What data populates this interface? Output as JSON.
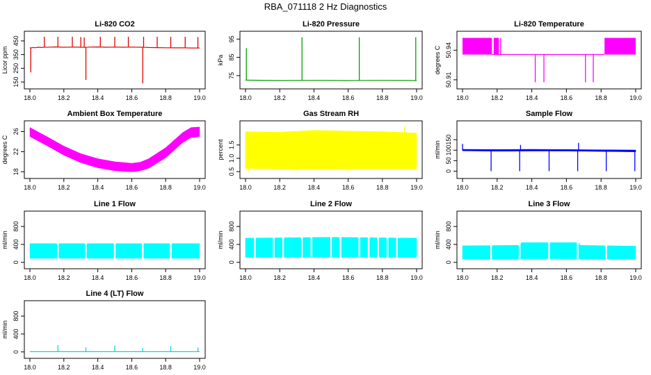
{
  "figure": {
    "title": "RBA_071118  2 Hz Diagnostics"
  },
  "chart_data": [
    {
      "id": "co2",
      "type": "line",
      "title": "Li-820 CO2",
      "ylabel": "Licor ppm",
      "xlim": [
        18.0,
        19.0
      ],
      "ylim": [
        130,
        490
      ],
      "xticks": [
        18.0,
        18.2,
        18.4,
        18.6,
        18.8,
        19.0
      ],
      "xtick_labels": [
        "18.0",
        "18.2",
        "18.4",
        "18.6",
        "18.8",
        "19.0"
      ],
      "yticks": [
        150,
        250,
        350,
        450
      ],
      "ytick_labels": [
        "150",
        "250",
        "350",
        "450"
      ],
      "color": "#e00000",
      "series": [
        {
          "name": "CO2",
          "mode": "line",
          "x": [
            18.0,
            18.01,
            18.02,
            18.03,
            18.05,
            18.07,
            18.09,
            18.1,
            18.12,
            18.15,
            18.2,
            18.25,
            18.3,
            18.33,
            18.35,
            18.4,
            18.45,
            18.5,
            18.55,
            18.6,
            18.65,
            18.68,
            18.7,
            18.75,
            18.8,
            18.85,
            18.9,
            18.95,
            18.99,
            19.0
          ],
          "y": [
            400,
            400,
            402,
            400,
            404,
            402,
            405,
            403,
            405,
            406,
            404,
            405,
            404,
            403,
            405,
            406,
            404,
            405,
            404,
            405,
            404,
            403,
            402,
            401,
            400,
            399,
            400,
            398,
            398,
            398
          ]
        }
      ],
      "spikes": [
        {
          "x": 18.005,
          "y": 220
        },
        {
          "x": 18.085,
          "y": 480
        },
        {
          "x": 18.165,
          "y": 480
        },
        {
          "x": 18.25,
          "y": 480
        },
        {
          "x": 18.3,
          "y": 478
        },
        {
          "x": 18.32,
          "y": 475
        },
        {
          "x": 18.33,
          "y": 165
        },
        {
          "x": 18.415,
          "y": 480
        },
        {
          "x": 18.5,
          "y": 480
        },
        {
          "x": 18.58,
          "y": 480
        },
        {
          "x": 18.665,
          "y": 140
        },
        {
          "x": 18.67,
          "y": 480
        },
        {
          "x": 18.75,
          "y": 480
        },
        {
          "x": 18.83,
          "y": 480
        },
        {
          "x": 18.915,
          "y": 480
        },
        {
          "x": 18.99,
          "y": 478
        }
      ]
    },
    {
      "id": "pressure",
      "type": "line",
      "title": "Li-820 Pressure",
      "ylabel": "kPa",
      "xlim": [
        18.0,
        19.0
      ],
      "ylim": [
        70,
        97
      ],
      "xticks": [
        18.0,
        18.2,
        18.4,
        18.6,
        18.8,
        19.0
      ],
      "xtick_labels": [
        "18.0",
        "18.2",
        "18.4",
        "18.6",
        "18.8",
        "19.0"
      ],
      "yticks": [
        75,
        85,
        95
      ],
      "ytick_labels": [
        "75",
        "85",
        "95"
      ],
      "color": "#00a000",
      "series": [
        {
          "name": "Pressure",
          "mode": "line",
          "x": [
            18.0,
            18.2,
            18.4,
            18.6,
            18.8,
            19.0
          ],
          "y": [
            72.5,
            72.3,
            72.4,
            72.3,
            72.4,
            72.3
          ]
        }
      ],
      "spikes": [
        {
          "x": 18.005,
          "y": 90
        },
        {
          "x": 18.33,
          "y": 96
        },
        {
          "x": 18.665,
          "y": 96
        },
        {
          "x": 18.995,
          "y": 96
        }
      ]
    },
    {
      "id": "temp",
      "type": "line",
      "title": "Li-820 Temperature",
      "ylabel": "degrees C",
      "xlim": [
        18.0,
        19.0
      ],
      "ylim": [
        50.905,
        50.955
      ],
      "xticks": [
        18.0,
        18.2,
        18.4,
        18.6,
        18.8,
        19.0
      ],
      "xtick_labels": [
        "18.0",
        "18.2",
        "18.4",
        "18.6",
        "18.8",
        "19.0"
      ],
      "yticks": [
        50.91,
        50.94
      ],
      "ytick_labels": [
        "50.91",
        "50.94"
      ],
      "color": "#ff00ff",
      "series": [
        {
          "name": "Temperature",
          "mode": "line",
          "x": [
            18.17,
            18.82
          ],
          "y": [
            50.9356,
            50.9356
          ]
        }
      ],
      "bands": [
        {
          "x0": 18.0,
          "x1": 18.17,
          "y0": 50.9356,
          "y1": 50.9525
        },
        {
          "x0": 18.18,
          "x1": 18.21,
          "y0": 50.9356,
          "y1": 50.9525
        },
        {
          "x0": 18.82,
          "x1": 19.0,
          "y0": 50.9356,
          "y1": 50.9525
        }
      ],
      "spikes": [
        {
          "x": 18.42,
          "y": 50.9075
        },
        {
          "x": 18.47,
          "y": 50.9075
        },
        {
          "x": 18.71,
          "y": 50.9075
        },
        {
          "x": 18.755,
          "y": 50.9075
        },
        {
          "x": 18.22,
          "y": 50.9525
        }
      ]
    },
    {
      "id": "box_temp",
      "type": "area",
      "title": "Ambient Box Temperature",
      "ylabel": "degrees C",
      "xlim": [
        18.0,
        19.0
      ],
      "ylim": [
        17.5,
        27.3
      ],
      "xticks": [
        18.0,
        18.2,
        18.4,
        18.6,
        18.8,
        19.0
      ],
      "xtick_labels": [
        "18.0",
        "18.2",
        "18.4",
        "18.6",
        "18.8",
        "19.0"
      ],
      "yticks": [
        18,
        22,
        26
      ],
      "ytick_labels": [
        "18",
        "22",
        "26"
      ],
      "color": "#ff00ff",
      "series": [
        {
          "name": "Box temperature",
          "mode": "band",
          "x": [
            18.0,
            18.1,
            18.2,
            18.3,
            18.4,
            18.5,
            18.6,
            18.65,
            18.7,
            18.8,
            18.9,
            18.95,
            19.0
          ],
          "low": [
            25.0,
            23.2,
            21.3,
            19.8,
            18.8,
            18.2,
            18.0,
            18.2,
            18.7,
            20.8,
            23.8,
            24.8,
            25.0
          ],
          "high": [
            26.8,
            25.0,
            23.1,
            21.6,
            20.6,
            20.0,
            19.7,
            19.9,
            20.6,
            22.8,
            25.8,
            26.8,
            26.9
          ]
        }
      ]
    },
    {
      "id": "rh",
      "type": "area",
      "title": "Gas Stream RH",
      "ylabel": "percent",
      "xlim": [
        18.0,
        19.0
      ],
      "ylim": [
        0.4,
        2.25
      ],
      "xticks": [
        18.0,
        18.2,
        18.4,
        18.6,
        18.8,
        19.0
      ],
      "xtick_labels": [
        "18.0",
        "18.2",
        "18.4",
        "18.6",
        "18.8",
        "19.0"
      ],
      "yticks": [
        0.5,
        1.0,
        1.5
      ],
      "ytick_labels": [
        "0.5",
        "1.0",
        "1.5"
      ],
      "color": "#ffff00",
      "series": [
        {
          "name": "RH",
          "mode": "band",
          "x": [
            18.0,
            18.2,
            18.4,
            18.6,
            18.8,
            19.0
          ],
          "low": [
            0.62,
            0.6,
            0.58,
            0.6,
            0.6,
            0.6
          ],
          "high": [
            2.0,
            1.98,
            2.05,
            2.02,
            2.0,
            1.95
          ]
        }
      ],
      "spikes": [
        {
          "x": 18.02,
          "y": 0.5
        },
        {
          "x": 18.3,
          "y": 0.52
        },
        {
          "x": 18.6,
          "y": 0.5
        },
        {
          "x": 18.93,
          "y": 2.2
        }
      ]
    },
    {
      "id": "sample_flow",
      "type": "line",
      "title": "Sample Flow",
      "ylabel": "ml/min",
      "xlim": [
        18.0,
        19.0
      ],
      "ylim": [
        -15,
        220
      ],
      "xticks": [
        18.0,
        18.2,
        18.4,
        18.6,
        18.8,
        19.0
      ],
      "xtick_labels": [
        "18.0",
        "18.2",
        "18.4",
        "18.6",
        "18.8",
        "19.0"
      ],
      "yticks": [
        0,
        50,
        100,
        150
      ],
      "ytick_labels": [
        "0",
        "50",
        "100",
        "150"
      ],
      "color": "#0000ff",
      "series": [
        {
          "name": "Sample flow",
          "mode": "band",
          "x": [
            18.0,
            18.2,
            18.4,
            18.6,
            18.8,
            19.0
          ],
          "low": [
            97,
            95,
            96,
            96,
            94,
            92
          ],
          "high": [
            104,
            103,
            104,
            103,
            102,
            101
          ]
        }
      ],
      "spikes": [
        {
          "x": 18.0,
          "y": 130
        },
        {
          "x": 18.165,
          "y": 0
        },
        {
          "x": 18.33,
          "y": 0
        },
        {
          "x": 18.335,
          "y": 125
        },
        {
          "x": 18.5,
          "y": 0
        },
        {
          "x": 18.665,
          "y": 0
        },
        {
          "x": 18.67,
          "y": 135
        },
        {
          "x": 18.83,
          "y": 0
        },
        {
          "x": 18.995,
          "y": 0
        }
      ]
    },
    {
      "id": "line1",
      "type": "area",
      "title": "Line 1 Flow",
      "ylabel": "ml/min",
      "xlim": [
        18.0,
        19.0
      ],
      "ylim": [
        -50,
        1050
      ],
      "xticks": [
        18.0,
        18.2,
        18.4,
        18.6,
        18.8,
        19.0
      ],
      "xtick_labels": [
        "18.0",
        "18.2",
        "18.4",
        "18.6",
        "18.8",
        "19.0"
      ],
      "yticks": [
        0,
        400,
        800
      ],
      "ytick_labels": [
        "0",
        "400",
        "800"
      ],
      "color": "#00ffff",
      "series": [
        {
          "name": "Line 1 flow",
          "mode": "band",
          "x": [
            18.0,
            19.0
          ],
          "low": [
            90,
            90
          ],
          "high": [
            420,
            420
          ]
        }
      ],
      "gaps": [
        18.165,
        18.33,
        18.5,
        18.665,
        18.83
      ]
    },
    {
      "id": "line2",
      "type": "area",
      "title": "Line 2 Flow",
      "ylabel": "ml/min",
      "xlim": [
        18.0,
        19.0
      ],
      "ylim": [
        -50,
        1050
      ],
      "xticks": [
        18.0,
        18.2,
        18.4,
        18.6,
        18.8,
        19.0
      ],
      "xtick_labels": [
        "18.0",
        "18.2",
        "18.4",
        "18.6",
        "18.8",
        "19.0"
      ],
      "yticks": [
        0,
        400,
        800
      ],
      "ytick_labels": [
        "0",
        "400",
        "800"
      ],
      "color": "#00ffff",
      "series": [
        {
          "name": "Line 2 flow",
          "mode": "band",
          "x": [
            18.0,
            18.5,
            19.0
          ],
          "low": [
            110,
            110,
            110
          ],
          "high": [
            540,
            560,
            540
          ]
        }
      ],
      "gaps": [
        18.055,
        18.165,
        18.22,
        18.33,
        18.385,
        18.5,
        18.555,
        18.665,
        18.72,
        18.775,
        18.83,
        18.885
      ]
    },
    {
      "id": "line3",
      "type": "area",
      "title": "Line 3 Flow",
      "ylabel": "ml/min",
      "xlim": [
        18.0,
        19.0
      ],
      "ylim": [
        -50,
        1050
      ],
      "xticks": [
        18.0,
        18.2,
        18.4,
        18.6,
        18.8,
        19.0
      ],
      "xtick_labels": [
        "18.0",
        "18.2",
        "18.4",
        "18.6",
        "18.8",
        "19.0"
      ],
      "yticks": [
        0,
        400,
        800
      ],
      "ytick_labels": [
        "0",
        "400",
        "800"
      ],
      "color": "#00ffff",
      "series": [
        {
          "name": "Line 3 flow",
          "mode": "band",
          "x": [
            18.0,
            18.33,
            18.34,
            18.67,
            18.68,
            19.0
          ],
          "low": [
            70,
            70,
            80,
            80,
            70,
            70
          ],
          "high": [
            370,
            380,
            440,
            440,
            380,
            360
          ]
        }
      ],
      "gaps": [
        18.165,
        18.33,
        18.5,
        18.665,
        18.83
      ]
    },
    {
      "id": "line4",
      "type": "line",
      "title": "Line 4 (LT) Flow",
      "ylabel": "ml/min",
      "xlim": [
        18.0,
        19.0
      ],
      "ylim": [
        -50,
        1050
      ],
      "xticks": [
        18.0,
        18.2,
        18.4,
        18.6,
        18.8,
        19.0
      ],
      "xtick_labels": [
        "18.0",
        "18.2",
        "18.4",
        "18.6",
        "18.8",
        "19.0"
      ],
      "yticks": [
        0,
        400,
        800
      ],
      "ytick_labels": [
        "0",
        "400",
        "800"
      ],
      "color": "#00dddd",
      "series": [
        {
          "name": "Line 4 flow",
          "mode": "line",
          "x": [
            18.0,
            19.0
          ],
          "y": [
            5,
            5
          ]
        }
      ],
      "spikes": [
        {
          "x": 18.165,
          "y": 150
        },
        {
          "x": 18.33,
          "y": 100
        },
        {
          "x": 18.5,
          "y": 140
        },
        {
          "x": 18.665,
          "y": 90
        },
        {
          "x": 18.83,
          "y": 130
        },
        {
          "x": 18.99,
          "y": 100
        }
      ]
    }
  ]
}
